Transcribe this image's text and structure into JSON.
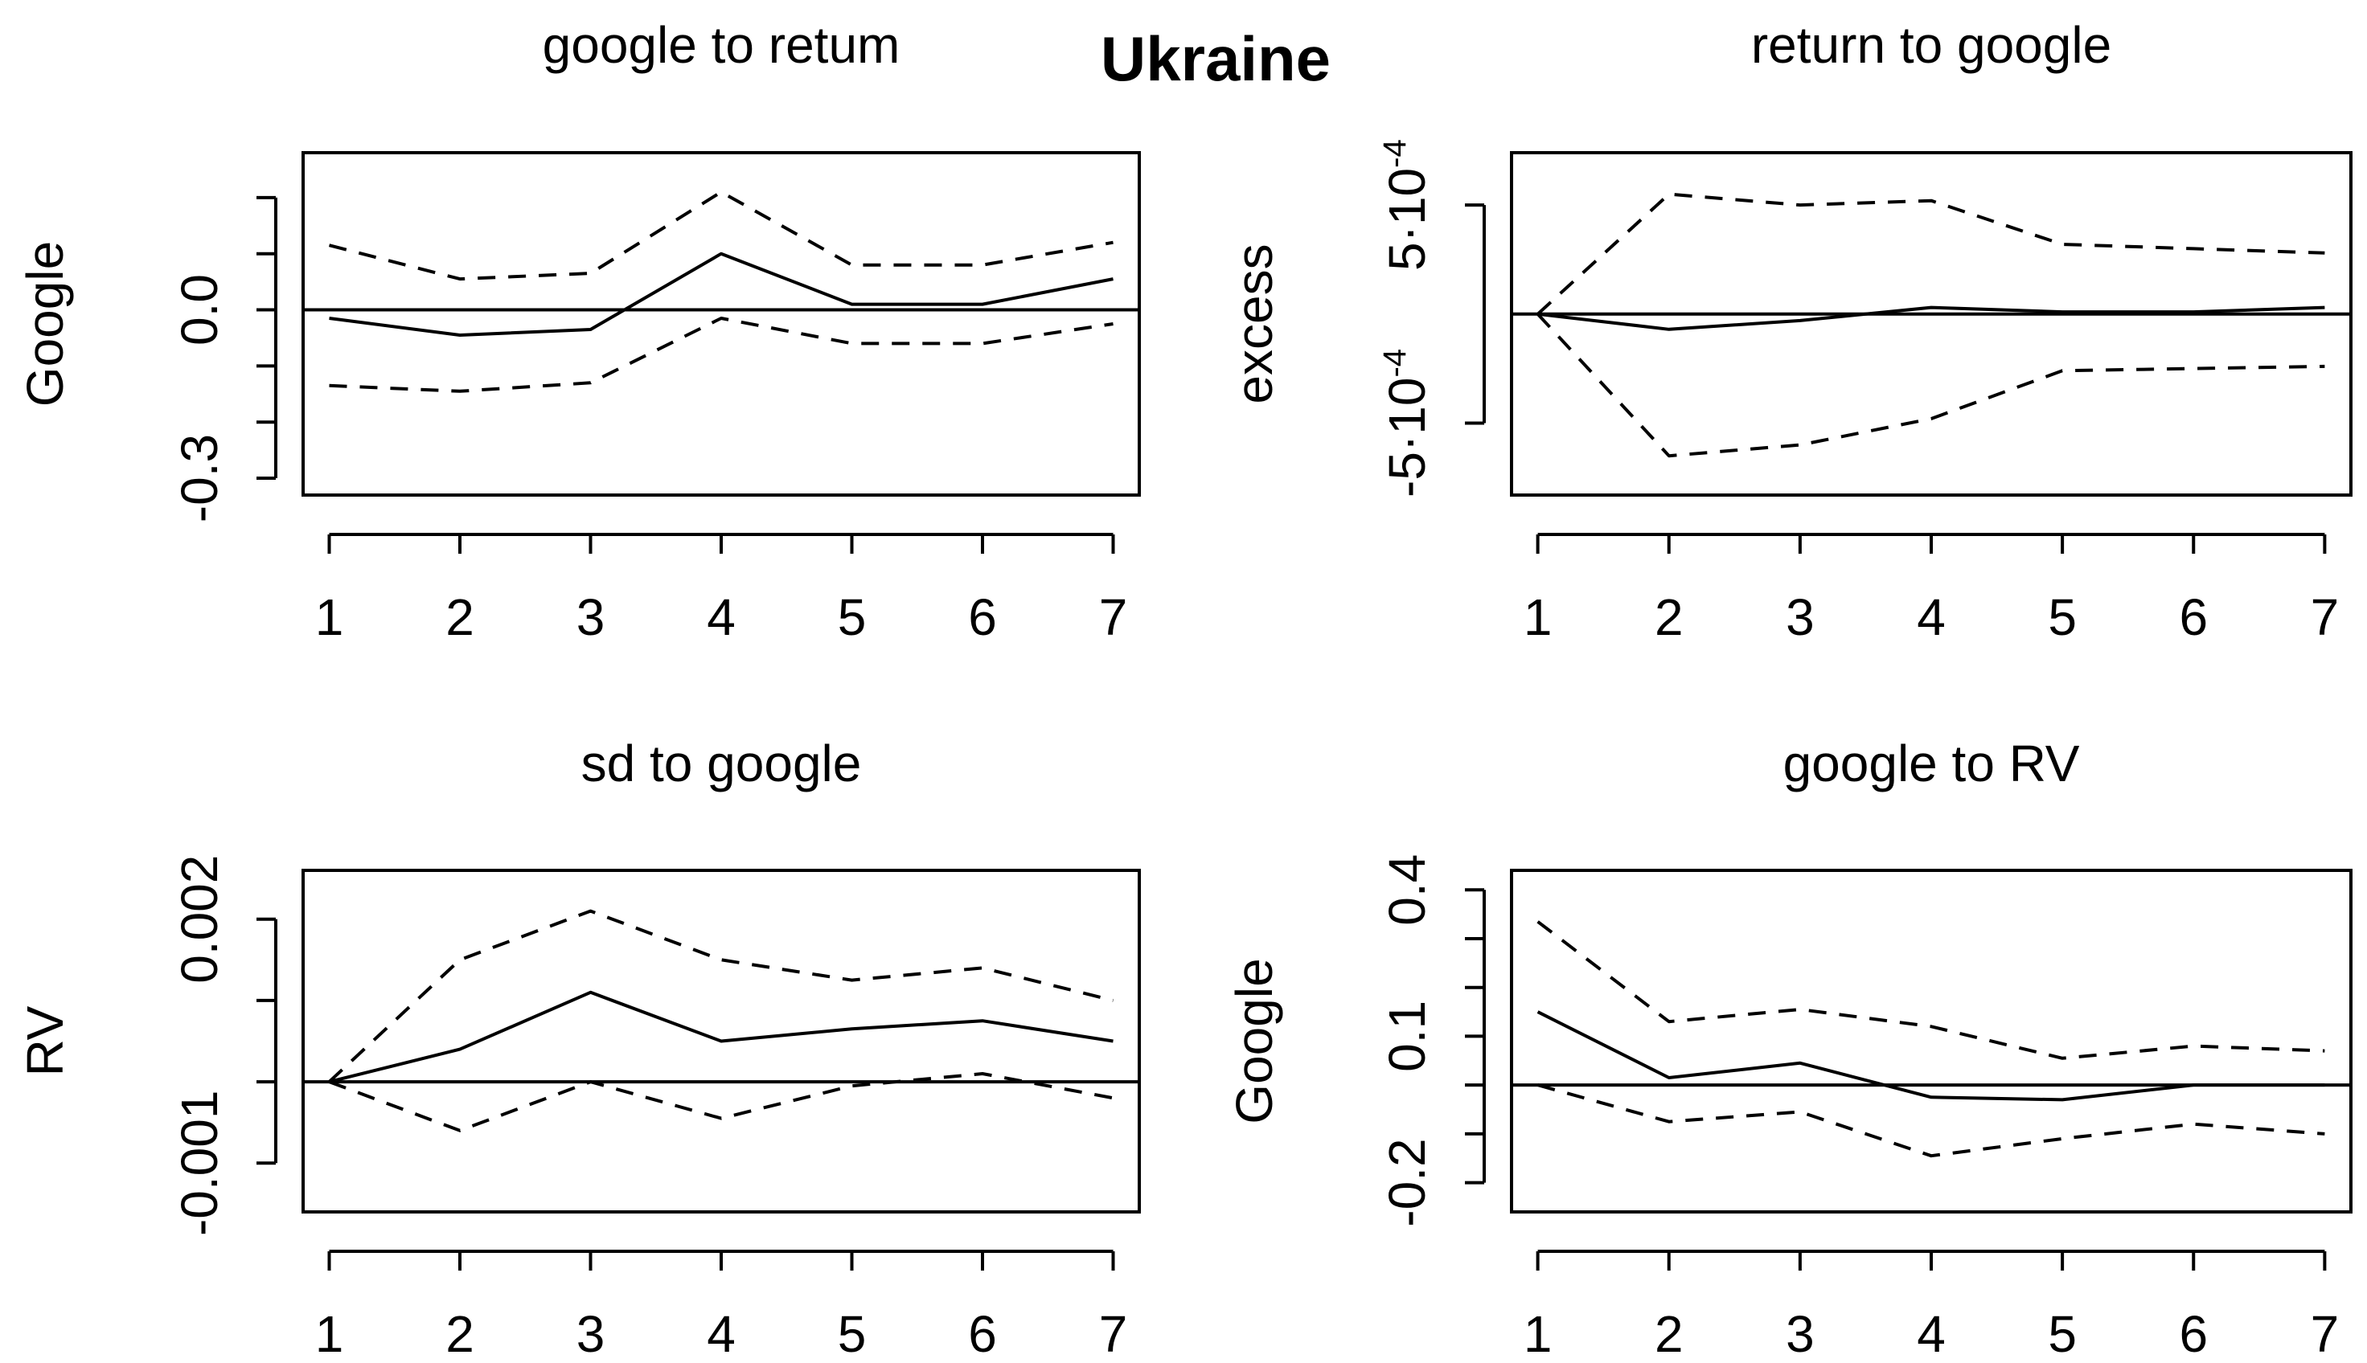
{
  "figure": {
    "title": "Ukraine"
  },
  "chart_data": [
    {
      "type": "line",
      "title": "google to retum",
      "xlabel": "",
      "ylabel": "Google",
      "x": [
        1,
        2,
        3,
        4,
        5,
        6,
        7
      ],
      "xlim": [
        0.8,
        7.2
      ],
      "ylim": [
        -0.33,
        0.28
      ],
      "x_ticks": [
        {
          "value": 1,
          "label": "1"
        },
        {
          "value": 2,
          "label": "2"
        },
        {
          "value": 3,
          "label": "3"
        },
        {
          "value": 4,
          "label": "4"
        },
        {
          "value": 5,
          "label": "5"
        },
        {
          "value": 6,
          "label": "6"
        },
        {
          "value": 7,
          "label": "7"
        }
      ],
      "y_ticks": [
        {
          "value": -0.3,
          "label": "-0.3"
        },
        {
          "value": -0.2,
          "label": ""
        },
        {
          "value": -0.1,
          "label": ""
        },
        {
          "value": 0.0,
          "label": "0.0"
        },
        {
          "value": 0.1,
          "label": ""
        },
        {
          "value": 0.2,
          "label": ""
        }
      ],
      "zero_line": 0,
      "series": [
        {
          "style": "solid",
          "values": [
            -0.015,
            -0.045,
            -0.035,
            0.1,
            0.01,
            0.01,
            0.055
          ]
        },
        {
          "style": "dashed",
          "values": [
            0.115,
            0.055,
            0.065,
            0.21,
            0.08,
            0.08,
            0.12
          ]
        },
        {
          "style": "dashed",
          "values": [
            -0.135,
            -0.145,
            -0.13,
            -0.015,
            -0.06,
            -0.06,
            -0.025
          ]
        }
      ]
    },
    {
      "type": "line",
      "title": "return to google",
      "xlabel": "",
      "ylabel": "excess",
      "x": [
        1,
        2,
        3,
        4,
        5,
        6,
        7
      ],
      "xlim": [
        0.8,
        7.2
      ],
      "ylim": [
        -0.00083,
        0.00074
      ],
      "x_ticks": [
        {
          "value": 1,
          "label": "1"
        },
        {
          "value": 2,
          "label": "2"
        },
        {
          "value": 3,
          "label": "3"
        },
        {
          "value": 4,
          "label": "4"
        },
        {
          "value": 5,
          "label": "5"
        },
        {
          "value": 6,
          "label": "6"
        },
        {
          "value": 7,
          "label": "7"
        }
      ],
      "y_ticks": [
        {
          "value": -0.0005,
          "mantissa": "-5·10",
          "exponent": "-4"
        },
        {
          "value": 0.0005,
          "mantissa": "5·10",
          "exponent": "-4"
        }
      ],
      "zero_line": 0,
      "series": [
        {
          "style": "solid",
          "values": [
            0.0,
            -7e-05,
            -3e-05,
            3e-05,
            1e-05,
            1e-05,
            3e-05
          ]
        },
        {
          "style": "dashed",
          "values": [
            0.0,
            0.00055,
            0.0005,
            0.00052,
            0.00032,
            0.0003,
            0.00028
          ]
        },
        {
          "style": "dashed",
          "values": [
            0.0,
            -0.00065,
            -0.0006,
            -0.00048,
            -0.00026,
            -0.00025,
            -0.00024
          ]
        }
      ]
    },
    {
      "type": "line",
      "title": "sd to google",
      "xlabel": "",
      "ylabel": "RV",
      "x": [
        1,
        2,
        3,
        4,
        5,
        6,
        7
      ],
      "xlim": [
        0.8,
        7.2
      ],
      "ylim": [
        -0.0016,
        0.0026
      ],
      "x_ticks": [
        {
          "value": 1,
          "label": "1"
        },
        {
          "value": 2,
          "label": "2"
        },
        {
          "value": 3,
          "label": "3"
        },
        {
          "value": 4,
          "label": "4"
        },
        {
          "value": 5,
          "label": "5"
        },
        {
          "value": 6,
          "label": "6"
        },
        {
          "value": 7,
          "label": "7"
        }
      ],
      "y_ticks": [
        {
          "value": -0.001,
          "label": "-0.001"
        },
        {
          "value": 0.0,
          "label": ""
        },
        {
          "value": 0.001,
          "label": ""
        },
        {
          "value": 0.002,
          "label": "0.002"
        }
      ],
      "zero_line": 0,
      "series": [
        {
          "style": "solid",
          "values": [
            0.0,
            0.0004,
            0.0011,
            0.0005,
            0.00065,
            0.00075,
            0.0005
          ]
        },
        {
          "style": "dashed",
          "values": [
            0.0,
            0.0015,
            0.0021,
            0.0015,
            0.00125,
            0.0014,
            0.001
          ]
        },
        {
          "style": "dashed",
          "values": [
            0.0,
            -0.0006,
            0.0,
            -0.00045,
            -5e-05,
            0.0001,
            -0.0002
          ]
        }
      ]
    },
    {
      "type": "line",
      "title": "google to RV",
      "xlabel": "",
      "ylabel": "Google",
      "x": [
        1,
        2,
        3,
        4,
        5,
        6,
        7
      ],
      "xlim": [
        0.8,
        7.2
      ],
      "ylim": [
        -0.26,
        0.44
      ],
      "x_ticks": [
        {
          "value": 1,
          "label": "1"
        },
        {
          "value": 2,
          "label": "2"
        },
        {
          "value": 3,
          "label": "3"
        },
        {
          "value": 4,
          "label": "4"
        },
        {
          "value": 5,
          "label": "5"
        },
        {
          "value": 6,
          "label": "6"
        },
        {
          "value": 7,
          "label": "7"
        }
      ],
      "y_ticks": [
        {
          "value": -0.2,
          "label": "-0.2"
        },
        {
          "value": -0.1,
          "label": ""
        },
        {
          "value": 0.0,
          "label": ""
        },
        {
          "value": 0.1,
          "label": "0.1"
        },
        {
          "value": 0.2,
          "label": ""
        },
        {
          "value": 0.3,
          "label": ""
        },
        {
          "value": 0.4,
          "label": "0.4"
        }
      ],
      "zero_line": 0,
      "series": [
        {
          "style": "solid",
          "values": [
            0.15,
            0.015,
            0.045,
            -0.025,
            -0.03,
            0.0,
            0.0
          ]
        },
        {
          "style": "dashed",
          "values": [
            0.335,
            0.13,
            0.155,
            0.12,
            0.055,
            0.08,
            0.07
          ]
        },
        {
          "style": "dashed",
          "values": [
            0.0,
            -0.075,
            -0.055,
            -0.145,
            -0.11,
            -0.08,
            -0.1
          ]
        }
      ]
    }
  ]
}
